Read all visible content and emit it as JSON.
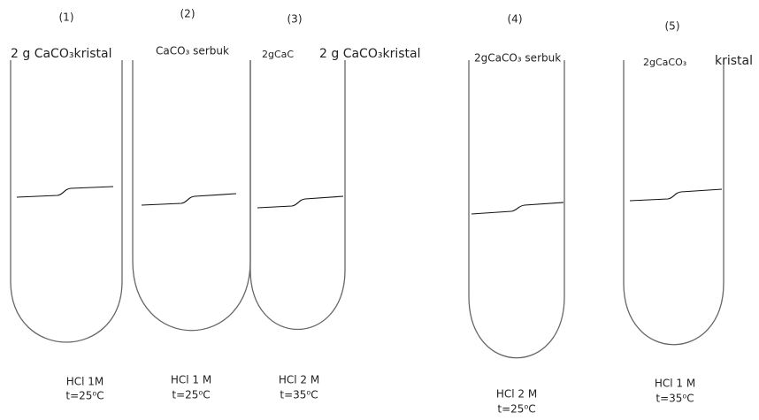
{
  "tubes": [
    {
      "number": "(1)",
      "reagent": "2 g CaCO₃kristal",
      "solution": "HCl 1M",
      "temperature": "t=25⁰C"
    },
    {
      "number": "(2)",
      "reagent": "CaCO₃ serbuk",
      "solution": "HCl 1 M",
      "temperature": "t=25⁰C"
    },
    {
      "number": "(3)",
      "reagent": "2gCaC",
      "solution": "HCl 2 M",
      "temperature": "t=35⁰C"
    },
    {
      "number": "(4)",
      "reagent": "2gCaCO₃ serbuk",
      "solution": "HCl 2 M",
      "temperature": "t=25⁰C"
    },
    {
      "number": "(5)",
      "reagent": "2gCaCO₃",
      "solution": "HCl 1 M",
      "temperature": "t=35⁰C"
    }
  ],
  "extra_labels": [
    "2 g CaCO₃kristal",
    "kristal"
  ]
}
